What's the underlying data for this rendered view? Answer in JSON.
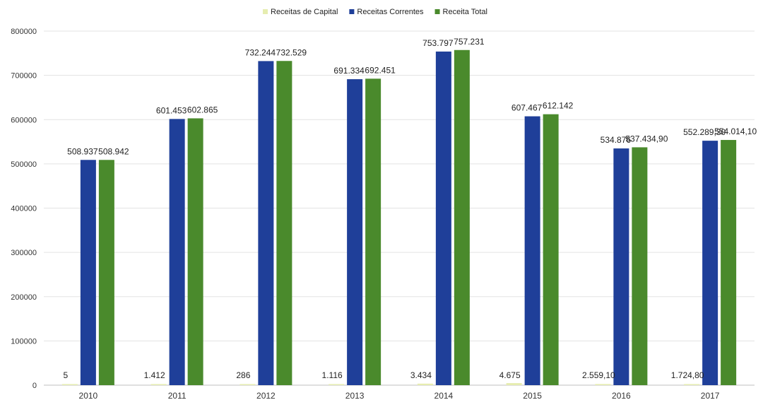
{
  "chart_data": {
    "type": "bar",
    "categories": [
      "2010",
      "2011",
      "2012",
      "2013",
      "2014",
      "2015",
      "2016",
      "2017"
    ],
    "series": [
      {
        "name": "Receitas de Capital",
        "color": "#e6edb0",
        "values": [
          5,
          1412,
          286,
          1116,
          3434,
          4675,
          2559.1,
          1724.8
        ],
        "labels": [
          "5",
          "1.412",
          "286",
          "1.116",
          "3.434",
          "4.675",
          "2.559,10",
          "1.724,80"
        ]
      },
      {
        "name": "Receitas Correntes",
        "color": "#1f3f99",
        "values": [
          508937,
          601453,
          732244,
          691334,
          753797,
          607467,
          534876,
          552289.3
        ],
        "labels": [
          "508.937",
          "601.453",
          "732.244",
          "691.334",
          "753.797",
          "607.467",
          "534.876",
          "552.289,30"
        ]
      },
      {
        "name": "Receita Total",
        "color": "#4a8a2c",
        "values": [
          508942,
          602865,
          732529,
          692451,
          757231,
          612142,
          537434.9,
          554014.1
        ],
        "labels": [
          "508.942",
          "602.865",
          "732.529",
          "692.451",
          "757.231",
          "612.142",
          "537.434,90",
          "554.014,10"
        ]
      }
    ],
    "yticks": [
      "0",
      "100000",
      "200000",
      "300000",
      "400000",
      "500000",
      "600000",
      "700000",
      "800000"
    ],
    "ylim": [
      0,
      800000
    ],
    "grid": true,
    "legend_position": "top-center"
  }
}
